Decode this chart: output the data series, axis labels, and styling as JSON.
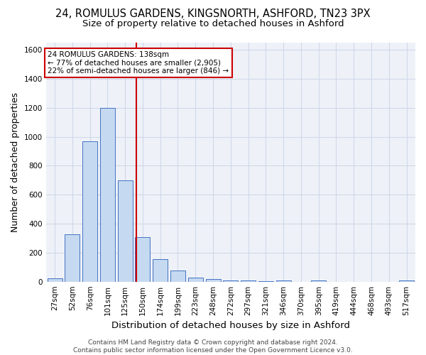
{
  "title": "24, ROMULUS GARDENS, KINGSNORTH, ASHFORD, TN23 3PX",
  "subtitle": "Size of property relative to detached houses in Ashford",
  "xlabel": "Distribution of detached houses by size in Ashford",
  "ylabel": "Number of detached properties",
  "bar_labels": [
    "27sqm",
    "52sqm",
    "76sqm",
    "101sqm",
    "125sqm",
    "150sqm",
    "174sqm",
    "199sqm",
    "223sqm",
    "248sqm",
    "272sqm",
    "297sqm",
    "321sqm",
    "346sqm",
    "370sqm",
    "395sqm",
    "419sqm",
    "444sqm",
    "468sqm",
    "493sqm",
    "517sqm"
  ],
  "bar_values": [
    25,
    325,
    970,
    1200,
    700,
    305,
    155,
    75,
    30,
    20,
    10,
    10,
    5,
    10,
    0,
    10,
    0,
    0,
    0,
    0,
    10
  ],
  "bar_color": "#c5d9f0",
  "bar_edge_color": "#4472c4",
  "vline_x_idx": 4.62,
  "vline_color": "#cc0000",
  "annotation_text": "24 ROMULUS GARDENS: 138sqm\n← 77% of detached houses are smaller (2,905)\n22% of semi-detached houses are larger (846) →",
  "annotation_box_color": "#ffffff",
  "annotation_box_edge": "#cc0000",
  "ylim": [
    0,
    1650
  ],
  "yticks": [
    0,
    200,
    400,
    600,
    800,
    1000,
    1200,
    1400,
    1600
  ],
  "grid_color": "#d0d8e8",
  "bg_color": "#eef2f8",
  "footer": "Contains HM Land Registry data © Crown copyright and database right 2024.\nContains public sector information licensed under the Open Government Licence v3.0.",
  "title_fontsize": 10.5,
  "subtitle_fontsize": 9.5,
  "axis_label_fontsize": 9,
  "tick_fontsize": 7.5,
  "footer_fontsize": 6.5
}
